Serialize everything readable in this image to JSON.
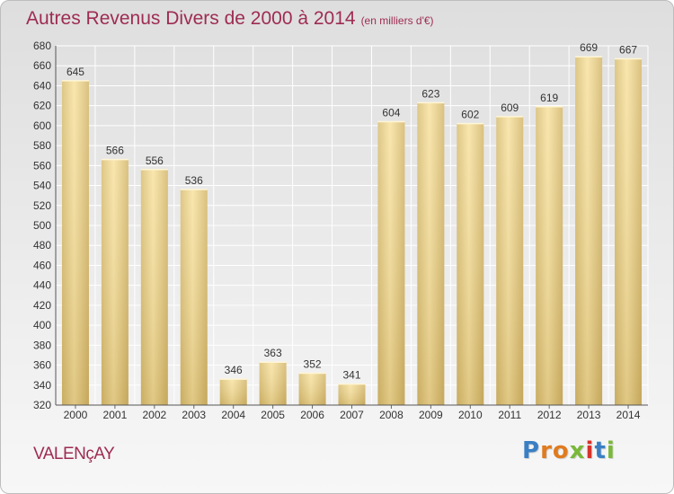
{
  "chart_data": {
    "type": "bar",
    "title": "Autres Revenus Divers de 2000 à 2014",
    "subtitle": "(en milliers d'€)",
    "categories": [
      "2000",
      "2001",
      "2002",
      "2003",
      "2004",
      "2005",
      "2006",
      "2007",
      "2008",
      "2009",
      "2010",
      "2011",
      "2012",
      "2013",
      "2014"
    ],
    "values": [
      645,
      566,
      556,
      536,
      346,
      363,
      352,
      341,
      604,
      623,
      602,
      609,
      619,
      669,
      667
    ],
    "ylim": [
      320,
      680
    ],
    "yticks": [
      320,
      340,
      360,
      380,
      400,
      420,
      440,
      460,
      480,
      500,
      520,
      540,
      560,
      580,
      600,
      620,
      640,
      660,
      680
    ],
    "grid": true
  },
  "footer": {
    "town": "VALENçAY",
    "logo": [
      "P",
      "r",
      "o",
      "x",
      "i",
      "t",
      "i"
    ]
  },
  "colors": {
    "title": "#9e2c52",
    "bar_light": "#f8e2a0",
    "bar_dark": "#c9ad60",
    "logo": [
      "#3a7fc4",
      "#e07b1f",
      "#e07b1f",
      "#7ab83a",
      "#d7322b",
      "#3a7fc4",
      "#7ab83a"
    ]
  }
}
